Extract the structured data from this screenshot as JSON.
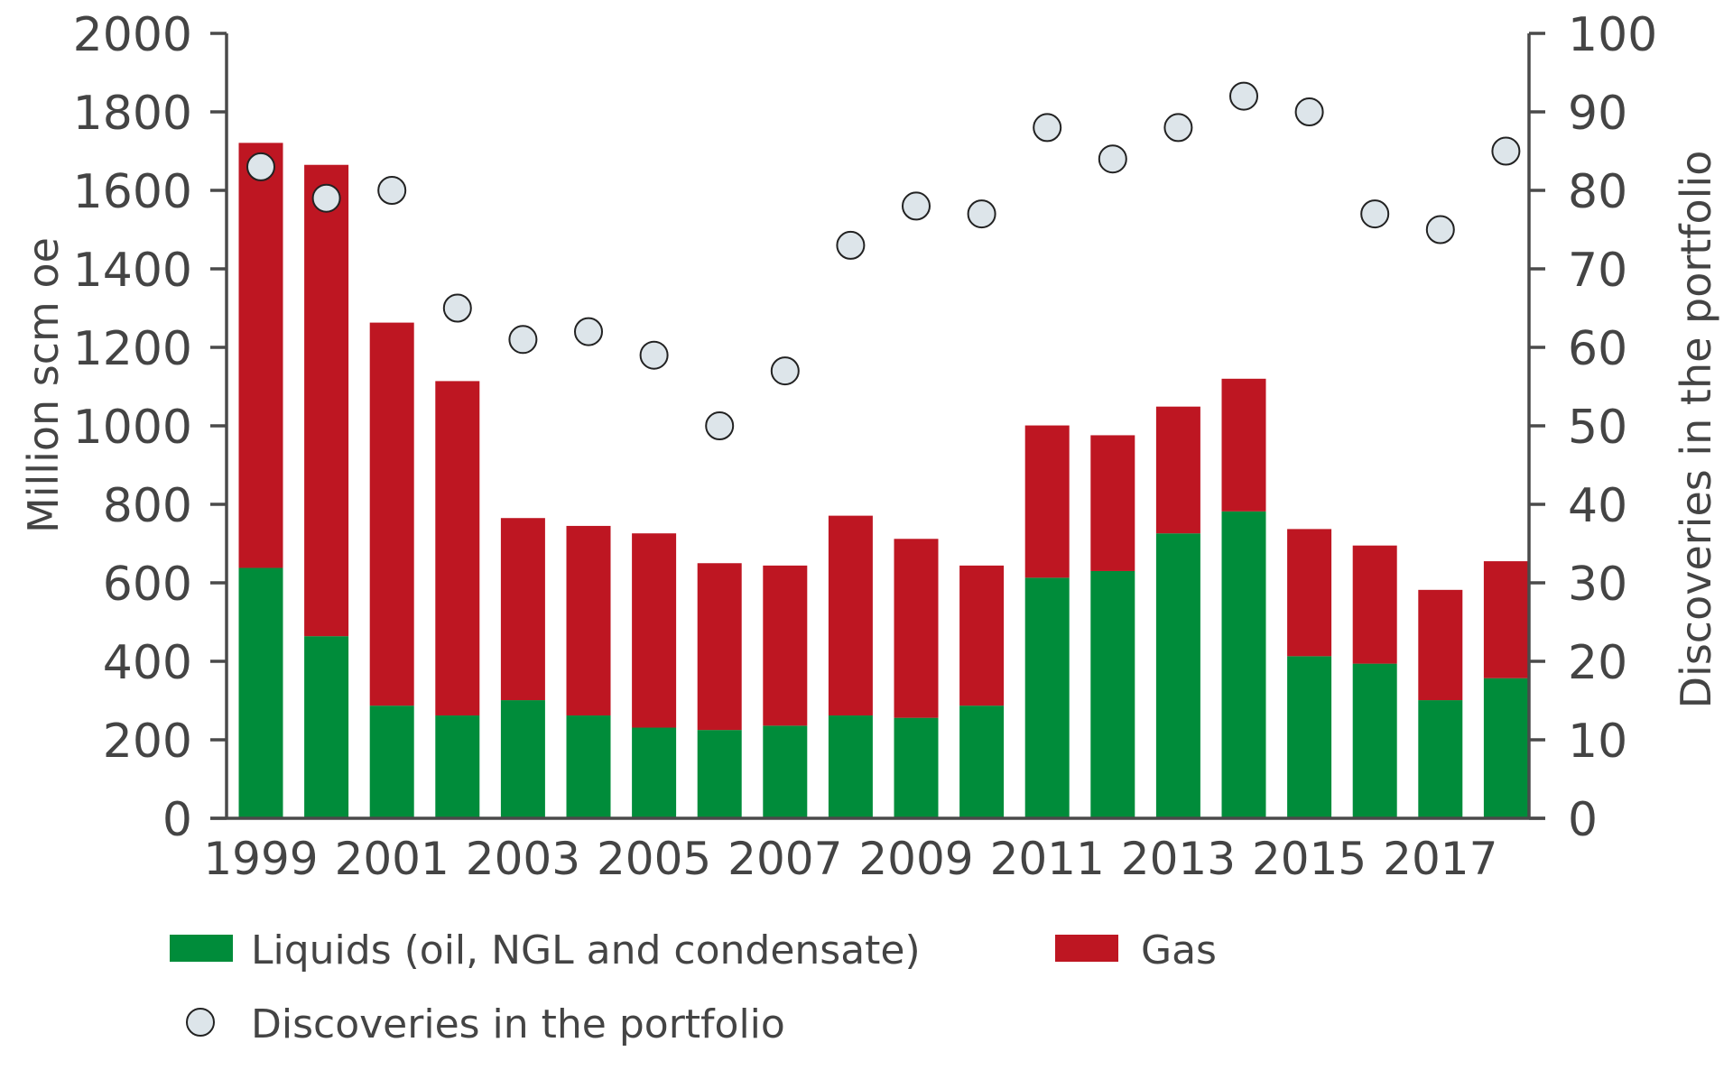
{
  "chart_data": {
    "type": "bar",
    "stacked": true,
    "categories": [
      "1999",
      "2000",
      "2001",
      "2002",
      "2003",
      "2004",
      "2005",
      "2006",
      "2007",
      "2008",
      "2009",
      "2010",
      "2011",
      "2012",
      "2013",
      "2014",
      "2015",
      "2016",
      "2017",
      "2018"
    ],
    "x_tick_labels": [
      "1999",
      "2001",
      "2003",
      "2005",
      "2007",
      "2009",
      "2011",
      "2013",
      "2015",
      "2017"
    ],
    "series": [
      {
        "name": "Liquids (oil, NGL and condensate)",
        "axis": "left",
        "kind": "bar",
        "color": "#008C3A",
        "values": [
          638,
          464,
          287,
          262,
          301,
          262,
          231,
          225,
          236,
          262,
          256,
          287,
          613,
          630,
          726,
          782,
          413,
          394,
          301,
          357
        ]
      },
      {
        "name": "Gas",
        "axis": "left",
        "kind": "bar",
        "color": "#BE1622",
        "values": [
          1083,
          1201,
          976,
          852,
          464,
          483,
          495,
          425,
          408,
          509,
          456,
          357,
          388,
          346,
          323,
          338,
          324,
          301,
          281,
          298
        ]
      },
      {
        "name": "Discoveries in the portfolio",
        "axis": "right",
        "kind": "scatter",
        "color": "#DDE5EA",
        "values": [
          83,
          79,
          80,
          65,
          61,
          62,
          59,
          50,
          57,
          73,
          78,
          77,
          88,
          84,
          88,
          92,
          90,
          77,
          75,
          85
        ]
      }
    ],
    "ylabel": "Million scm oe",
    "ylabel_right": "Discoveries in the portfolio",
    "ylim": [
      0,
      2000
    ],
    "ylim_right": [
      0,
      100
    ],
    "yticks": [
      "0",
      "200",
      "400",
      "600",
      "800",
      "1000",
      "1200",
      "1400",
      "1600",
      "1800",
      "2000"
    ],
    "yticks_right": [
      "0",
      "10",
      "20",
      "30",
      "40",
      "50",
      "60",
      "70",
      "80",
      "90",
      "100"
    ],
    "grid": false,
    "legend_position": "bottom-left",
    "legend": [
      "Liquids (oil, NGL and condensate)",
      "Gas",
      "Discoveries in the portfolio"
    ]
  }
}
